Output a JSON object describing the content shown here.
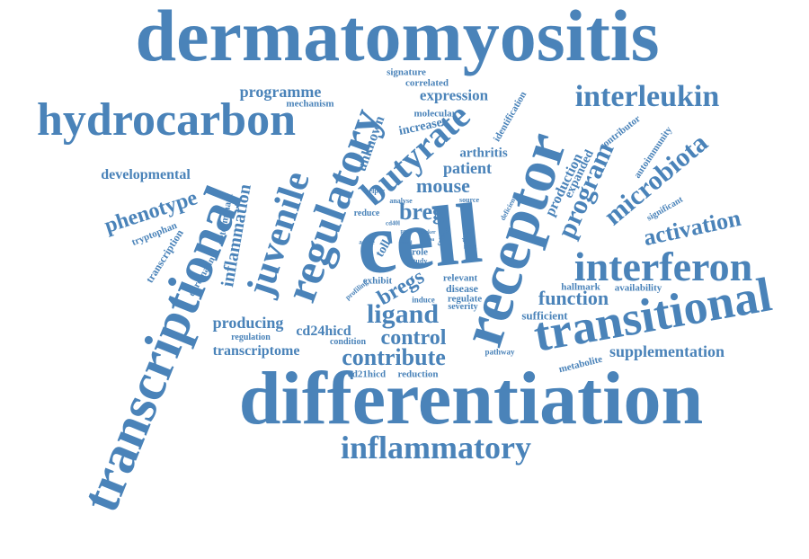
{
  "style": {
    "word_color": "#4A83B9",
    "background": "#FFFFFF"
  },
  "words": [
    "dermatomyositis",
    "differentiation",
    "transcriptional",
    "cell",
    "receptor",
    "transitional",
    "hydrocarbon",
    "interferon",
    "regulatory",
    "interleukin",
    "inflammatory",
    "butyrate",
    "juvenile",
    "microbiota",
    "program",
    "activation",
    "inflammation",
    "ligand",
    "phenotype",
    "breg",
    "contribute",
    "control",
    "function",
    "bregs",
    "mouse",
    "supplementation",
    "producing",
    "programme",
    "expression",
    "developmental",
    "cd24hicd",
    "transcriptome",
    "patient",
    "unknown",
    "production",
    "arthritis",
    "increase",
    "expanded",
    "toll",
    "chromatin",
    "determinant",
    "tryptophan",
    "transcription",
    "mechanism",
    "correlated",
    "signature",
    "molecular",
    "identification",
    "contributor",
    "autoimmunity",
    "significant",
    "reduce",
    "availability",
    "hallmark",
    "sufficient",
    "metabolite",
    "regulation",
    "condition",
    "cd21hicd",
    "reduction",
    "pathway",
    "exhibit",
    "relevant",
    "disease",
    "regulate",
    "severity",
    "induce",
    "profiling",
    "role",
    "study",
    "active",
    "cd40l",
    "helper",
    "analyse",
    "source",
    "deficient",
    "direct",
    "most",
    "critical",
    "pro",
    "also",
    "found",
    "marker",
    "tba"
  ]
}
